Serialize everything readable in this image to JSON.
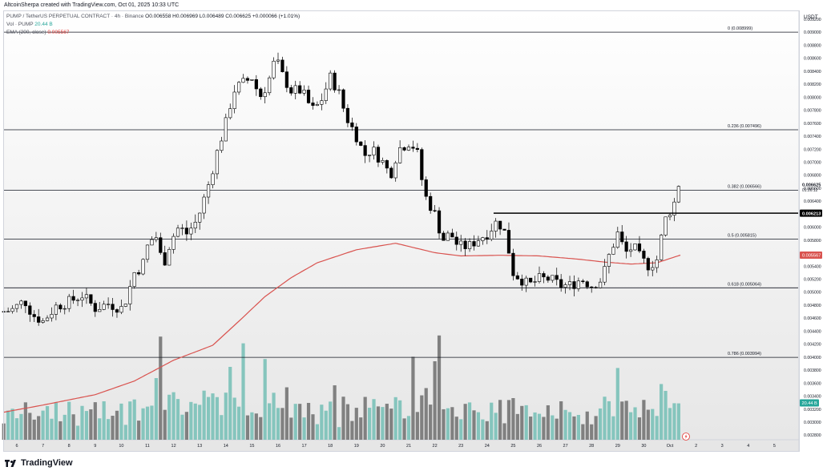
{
  "header": {
    "credit": "AltcoinSherpa created with TradingView.com, Oct 01, 2025 10:33 UTC",
    "symbol": "PUMP / TetherUS PERPETUAL CONTRACT · 4h · Binance",
    "ohlc": "O0.006558 H0.006969 L0.006489 C0.006625 +0.000066 (+1.01%)",
    "vol_label": "Vol · PUMP",
    "vol_value": "20.44 B",
    "ema_label": "EMA (200, close)",
    "ema_value": "0.005567"
  },
  "brand": "TradingView",
  "colors": {
    "up": "#ffffff",
    "down": "#000000",
    "volume_up": "#7fc3bb",
    "volume_down": "#7a7a7a",
    "ema": "#d9534f",
    "fib": "#131722",
    "background_top": "#ffffff",
    "background_bottom": "#e6e6e6"
  },
  "chart_data": {
    "type": "candlestick",
    "interval": "4h",
    "y_axis": {
      "position": "right",
      "currency": "USDT",
      "ylim": [
        0.0027,
        0.0095
      ],
      "ticks": [
        "0.009200",
        "0.009000",
        "0.008800",
        "0.008600",
        "0.008400",
        "0.008200",
        "0.008000",
        "0.007800",
        "0.007600",
        "0.007400",
        "0.007200",
        "0.007000",
        "0.006800",
        "0.006600",
        "0.006400",
        "0.006200",
        "0.006000",
        "0.005800",
        "0.005600",
        "0.005400",
        "0.005200",
        "0.005000",
        "0.004800",
        "0.004600",
        "0.004400",
        "0.004200",
        "0.004000",
        "0.003800",
        "0.003600",
        "0.003400",
        "0.003200",
        "0.003000",
        "0.002800"
      ]
    },
    "x_axis": {
      "labels": [
        "6",
        "7",
        "8",
        "9",
        "10",
        "11",
        "12",
        "13",
        "14",
        "15",
        "16",
        "17",
        "18",
        "19",
        "20",
        "21",
        "22",
        "23",
        "24",
        "25",
        "26",
        "27",
        "28",
        "29",
        "30",
        "Oct",
        "2",
        "3",
        "4",
        "5"
      ],
      "days": [
        6,
        7,
        8,
        9,
        10,
        11,
        12,
        13,
        14,
        15,
        16,
        17,
        18,
        19,
        20,
        21,
        22,
        23,
        24,
        25,
        26,
        27,
        28,
        29,
        30,
        31,
        32,
        33,
        34,
        35
      ]
    },
    "fib_levels": [
      {
        "ratio": "0",
        "price": 0.008999,
        "label": "0 (0.008999)"
      },
      {
        "ratio": "0.236",
        "price": 0.007496,
        "label": "0.236 (0.007496)"
      },
      {
        "ratio": "0.382",
        "price": 0.006566,
        "label": "0.382 (0.006566)"
      },
      {
        "ratio": "0.5",
        "price": 0.005815,
        "label": "0.5 (0.005815)"
      },
      {
        "ratio": "0.618",
        "price": 0.005064,
        "label": "0.618 (0.005064)"
      },
      {
        "ratio": "0.786",
        "price": 0.003994,
        "label": "0.786 (0.003994)"
      }
    ],
    "horizontal_line": {
      "price": 0.006213,
      "label": "0.006213",
      "from_day": 24.25
    },
    "last_price": {
      "value": 0.006625,
      "label": "0.006625",
      "countdown": "01:26:12"
    },
    "ema_marker": {
      "value": 0.005567,
      "label": "0.005567"
    },
    "volume_marker": {
      "label": "20.44 B"
    },
    "close_waypoints": [
      [
        5.5,
        0.0047
      ],
      [
        5.8,
        0.00472
      ],
      [
        6.3,
        0.00487
      ],
      [
        6.6,
        0.00465
      ],
      [
        7.0,
        0.00455
      ],
      [
        7.5,
        0.00478
      ],
      [
        8.0,
        0.00485
      ],
      [
        8.5,
        0.00495
      ],
      [
        9.0,
        0.00475
      ],
      [
        9.5,
        0.00482
      ],
      [
        10.0,
        0.00475
      ],
      [
        10.2,
        0.0049
      ],
      [
        10.5,
        0.0053
      ],
      [
        10.8,
        0.0054
      ],
      [
        11.0,
        0.0057
      ],
      [
        11.3,
        0.0059
      ],
      [
        11.6,
        0.0054
      ],
      [
        11.9,
        0.0058
      ],
      [
        12.2,
        0.006
      ],
      [
        12.5,
        0.0059
      ],
      [
        12.9,
        0.0061
      ],
      [
        13.3,
        0.0066
      ],
      [
        13.7,
        0.0072
      ],
      [
        14.0,
        0.0076
      ],
      [
        14.3,
        0.0081
      ],
      [
        14.6,
        0.0082
      ],
      [
        15.0,
        0.0083
      ],
      [
        15.3,
        0.008
      ],
      [
        15.6,
        0.0082
      ],
      [
        15.9,
        0.0086
      ],
      [
        16.2,
        0.0083
      ],
      [
        16.5,
        0.0081
      ],
      [
        16.9,
        0.0081
      ],
      [
        17.3,
        0.0078
      ],
      [
        17.6,
        0.0079
      ],
      [
        18.0,
        0.0083
      ],
      [
        18.3,
        0.0081
      ],
      [
        18.6,
        0.0077
      ],
      [
        19.0,
        0.0074
      ],
      [
        19.3,
        0.0071
      ],
      [
        19.6,
        0.0072
      ],
      [
        20.0,
        0.007
      ],
      [
        20.3,
        0.0068
      ],
      [
        20.6,
        0.0072
      ],
      [
        21.0,
        0.0073
      ],
      [
        21.3,
        0.0072
      ],
      [
        21.6,
        0.0065
      ],
      [
        22.0,
        0.0062
      ],
      [
        22.3,
        0.0058
      ],
      [
        22.6,
        0.0059
      ],
      [
        22.9,
        0.0057
      ],
      [
        23.3,
        0.0057
      ],
      [
        23.6,
        0.0058
      ],
      [
        24.0,
        0.0059
      ],
      [
        24.4,
        0.0061
      ],
      [
        24.7,
        0.0059
      ],
      [
        25.0,
        0.0053
      ],
      [
        25.3,
        0.0052
      ],
      [
        25.6,
        0.0051
      ],
      [
        26.0,
        0.0052
      ],
      [
        26.4,
        0.0052
      ],
      [
        26.8,
        0.0051
      ],
      [
        27.2,
        0.0051
      ],
      [
        27.6,
        0.0052
      ],
      [
        28.0,
        0.0051
      ],
      [
        28.4,
        0.0052
      ],
      [
        28.7,
        0.0056
      ],
      [
        29.0,
        0.0059
      ],
      [
        29.3,
        0.0056
      ],
      [
        29.6,
        0.0057
      ],
      [
        29.9,
        0.0055
      ],
      [
        30.2,
        0.0054
      ],
      [
        30.5,
        0.0055
      ],
      [
        30.8,
        0.0061
      ],
      [
        31.2,
        0.0064
      ],
      [
        31.4,
        0.006625
      ]
    ],
    "ema_waypoints": [
      [
        5.5,
        0.00315
      ],
      [
        7.0,
        0.00326
      ],
      [
        9.0,
        0.00342
      ],
      [
        10.5,
        0.00363
      ],
      [
        12.0,
        0.00395
      ],
      [
        13.5,
        0.00418
      ],
      [
        14.5,
        0.00455
      ],
      [
        15.5,
        0.00493
      ],
      [
        16.5,
        0.00522
      ],
      [
        17.5,
        0.00545
      ],
      [
        19.0,
        0.00565
      ],
      [
        20.5,
        0.00575
      ],
      [
        22.0,
        0.005605
      ],
      [
        23.0,
        0.005555
      ],
      [
        24.5,
        0.005565
      ],
      [
        26.0,
        0.005555
      ],
      [
        27.5,
        0.005505
      ],
      [
        28.5,
        0.00546
      ],
      [
        29.5,
        0.00543
      ],
      [
        30.5,
        0.00545
      ],
      [
        31.0,
        0.005515
      ],
      [
        31.4,
        0.005567
      ]
    ],
    "volume_spikes": [
      {
        "day": 11.5,
        "rel": 0.92
      },
      {
        "day": 11.3,
        "rel": 0.55
      },
      {
        "day": 14.6,
        "rel": 0.86
      },
      {
        "day": 15.5,
        "rel": 0.72
      },
      {
        "day": 21.1,
        "rel": 0.74
      },
      {
        "day": 22.0,
        "rel": 0.7
      },
      {
        "day": 22.1,
        "rel": 0.93
      },
      {
        "day": 29.0,
        "rel": 0.64
      },
      {
        "day": 14.1,
        "rel": 0.65
      }
    ]
  }
}
